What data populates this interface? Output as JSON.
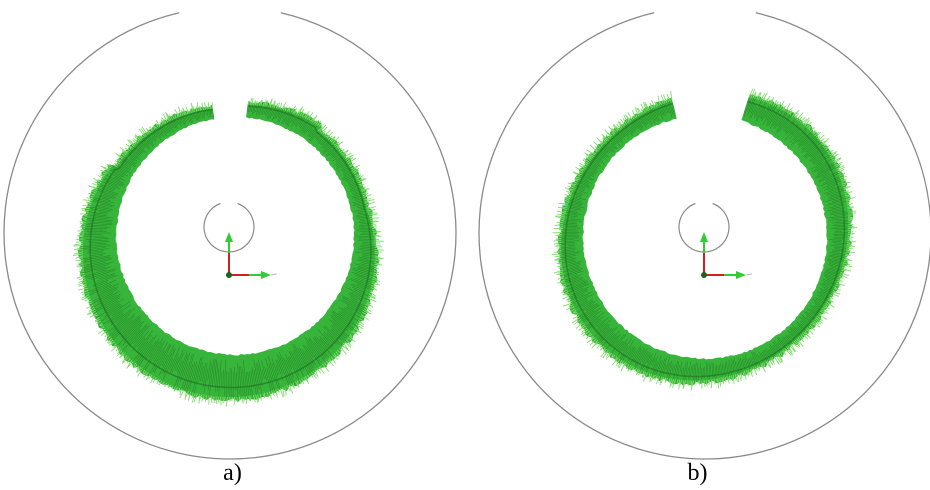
{
  "figure": {
    "panels": [
      {
        "id": "a",
        "caption": "a)"
      },
      {
        "id": "b",
        "caption": "b)"
      }
    ]
  },
  "colors": {
    "outline": "#8a8a8a",
    "band_fill": "#37b43a",
    "band_dark": "#1f6e22",
    "band_light": "#7ede6a",
    "axis_x": "#33cc33",
    "axis_y": "#33cc33",
    "axis_z": "#cc2222",
    "origin": "#1f5f1f"
  }
}
